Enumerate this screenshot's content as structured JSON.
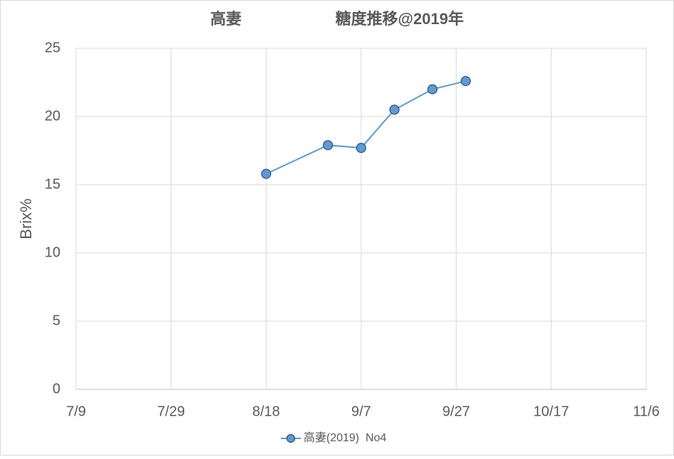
{
  "chart_data": {
    "type": "line",
    "title": "高妻　　　　　　糖度推移@2019年",
    "y_label": "Brix%",
    "x": [
      "8/18",
      "8/31",
      "9/7",
      "9/14",
      "9/22",
      "9/29"
    ],
    "series": [
      {
        "name": "高妻(2019)  No4",
        "color": "#5b9bd5",
        "values": [
          15.8,
          17.9,
          17.7,
          20.5,
          22.0,
          22.6
        ]
      }
    ],
    "xlim": [
      "7/9",
      "11/6"
    ],
    "xticks": [
      "7/9",
      "7/29",
      "8/18",
      "9/7",
      "9/27",
      "10/17",
      "11/6"
    ],
    "ylim": [
      0,
      25
    ],
    "yticks": [
      0,
      5,
      10,
      15,
      20,
      25
    ],
    "grid": true,
    "legend": "bottom"
  }
}
